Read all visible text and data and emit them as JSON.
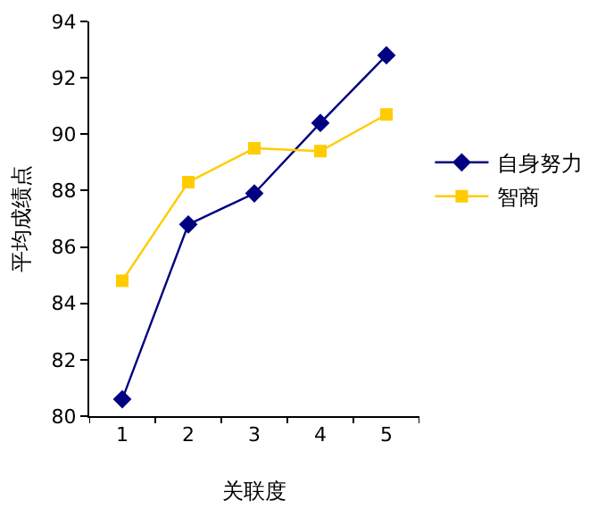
{
  "chart_data": {
    "type": "line",
    "xlabel": "关联度",
    "ylabel": "平均成绩点",
    "categories": [
      "1",
      "2",
      "3",
      "4",
      "5"
    ],
    "series": [
      {
        "name": "自身努力",
        "color": "#000080",
        "marker": "diamond",
        "values": [
          80.6,
          86.8,
          87.9,
          90.4,
          92.8
        ]
      },
      {
        "name": "智商",
        "color": "#ffcc00",
        "marker": "square",
        "values": [
          84.8,
          88.3,
          89.5,
          89.4,
          90.7
        ]
      }
    ],
    "ylim": [
      80,
      94
    ],
    "yticks": [
      80,
      82,
      84,
      86,
      88,
      90,
      92,
      94
    ],
    "grid": false,
    "legend": "right"
  }
}
